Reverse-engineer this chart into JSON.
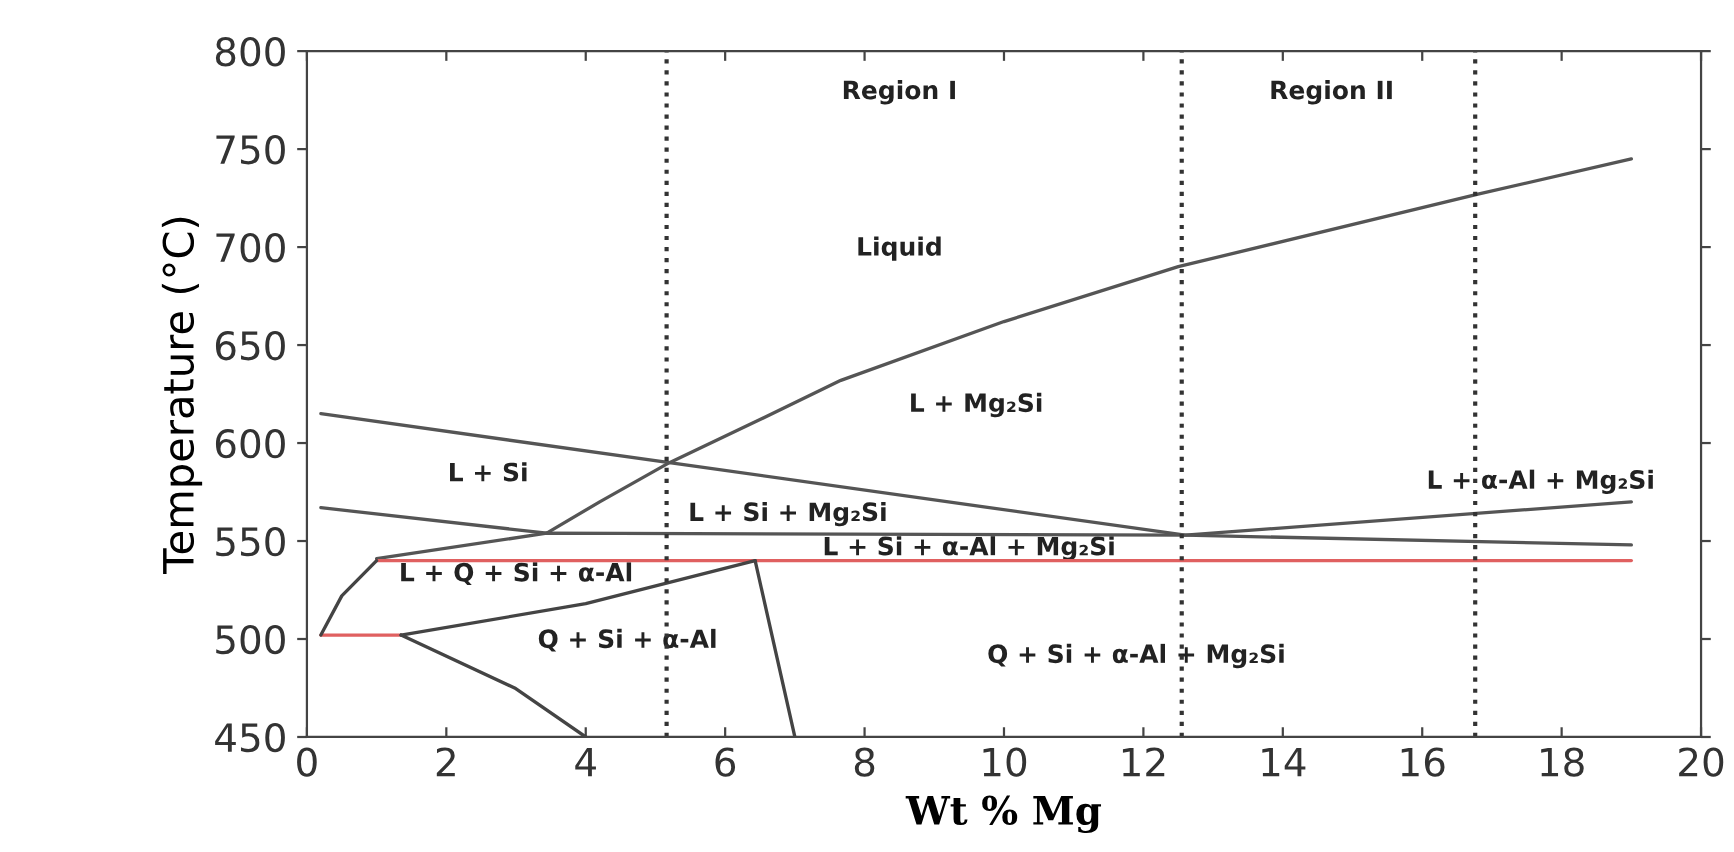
{
  "chart_data": {
    "type": "line",
    "xlabel": "Wt % Mg",
    "ylabel": "Temperature (°C)",
    "xlim": [
      0,
      20
    ],
    "ylim": [
      450,
      800
    ],
    "xticks": [
      0,
      2,
      4,
      6,
      8,
      10,
      12,
      14,
      16,
      18,
      20
    ],
    "yticks": [
      450,
      500,
      550,
      600,
      650,
      700,
      750,
      800
    ],
    "grid": false,
    "marker": "none",
    "line_style": "solid",
    "series": [
      {
        "color": "#555555",
        "x": [
          3.44,
          4.2,
          5.2,
          6.5,
          7.66,
          10,
          12.5,
          16.8,
          19
        ],
        "values": [
          554,
          570,
          590,
          612,
          632,
          662,
          690,
          727,
          745
        ]
      },
      {
        "color": "#555555",
        "x": [
          0.2,
          12.6,
          19
        ],
        "values": [
          615,
          553,
          570
        ]
      },
      {
        "color": "#555555",
        "x": [
          0.2,
          3.44
        ],
        "values": [
          567,
          554
        ]
      },
      {
        "color": "#555555",
        "x": [
          1.0,
          3.44,
          12.6,
          19
        ],
        "values": [
          541,
          554,
          553,
          548
        ]
      },
      {
        "color": "#e06060",
        "x": [
          1.0,
          19
        ],
        "values": [
          540,
          540
        ]
      },
      {
        "color": "#e06060",
        "x": [
          0.2,
          1.35
        ],
        "values": [
          502,
          502
        ]
      },
      {
        "color": "#444444",
        "x": [
          0.2,
          0.5,
          1.0
        ],
        "values": [
          502,
          522,
          540
        ]
      },
      {
        "color": "#444444",
        "x": [
          1.35,
          4.0,
          6.43
        ],
        "values": [
          502,
          518,
          540
        ]
      },
      {
        "color": "#444444",
        "x": [
          6.43,
          7.0
        ],
        "values": [
          540,
          450
        ]
      },
      {
        "color": "#444444",
        "x": [
          1.35,
          2.98,
          4.0
        ],
        "values": [
          502,
          475,
          450
        ]
      }
    ],
    "ref_lines": [
      {
        "axis": "x",
        "value": 5.16,
        "color": "#333333",
        "line_style": "dotted"
      },
      {
        "axis": "x",
        "value": 12.55,
        "color": "#333333",
        "line_style": "dotted"
      },
      {
        "axis": "x",
        "value": 16.76,
        "color": "#333333",
        "line_style": "dotted"
      }
    ],
    "annotations": [
      "Region I",
      "Region II",
      "Liquid",
      "L + Mg₂Si",
      "L + Si",
      "L + Si + Mg₂Si",
      "L + Si + α-Al + Mg₂Si",
      "L + α-Al + Mg₂Si",
      "L + Q + Si + α-Al",
      "Q + Si + α-Al",
      "Q + Si + α-Al + Mg₂Si"
    ]
  }
}
